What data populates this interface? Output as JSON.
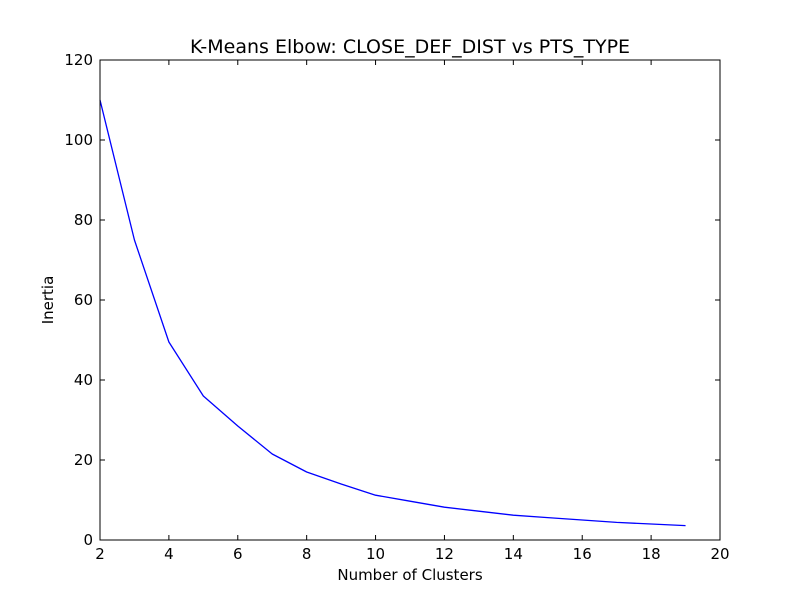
{
  "chart_data": {
    "type": "line",
    "title": "K-Means Elbow: CLOSE_DEF_DIST vs PTS_TYPE",
    "xlabel": "Number of Clusters",
    "ylabel": "Inertia",
    "xlim": [
      2,
      20
    ],
    "ylim": [
      0,
      120
    ],
    "xticks": [
      2,
      4,
      6,
      8,
      10,
      12,
      14,
      16,
      18,
      20
    ],
    "yticks": [
      0,
      20,
      40,
      60,
      80,
      100,
      120
    ],
    "grid": false,
    "line_color": "#0000ff",
    "series": [
      {
        "x": [
          2,
          3,
          4,
          5,
          6,
          7,
          8,
          9,
          10,
          11,
          12,
          13,
          14,
          15,
          16,
          17,
          18,
          19
        ],
        "values": [
          110.0,
          75.0,
          49.5,
          36.0,
          28.5,
          21.5,
          17.0,
          14.0,
          11.2,
          9.7,
          8.2,
          7.2,
          6.2,
          5.6,
          5.0,
          4.4,
          4.0,
          3.6
        ]
      }
    ]
  }
}
